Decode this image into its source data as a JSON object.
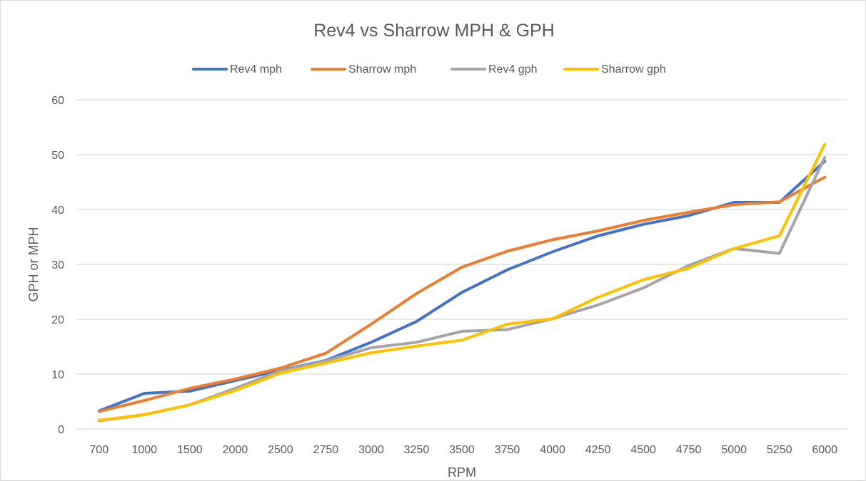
{
  "chart_data": {
    "type": "line",
    "title": "Rev4 vs Sharrow MPH & GPH",
    "xlabel": "RPM",
    "ylabel": "GPH or MPH",
    "ylim": [
      0,
      60
    ],
    "yticks": [
      0,
      10,
      20,
      30,
      40,
      50,
      60
    ],
    "grid": true,
    "legend": "top",
    "categories": [
      "700",
      "1000",
      "1500",
      "2000",
      "2500",
      "2750",
      "3000",
      "3250",
      "3500",
      "3750",
      "4000",
      "4250",
      "4500",
      "4750",
      "5000",
      "5250",
      "6000"
    ],
    "series": [
      {
        "name": "Rev4 mph",
        "color": "#4472c4",
        "values": [
          3.3,
          6.5,
          6.9,
          8.8,
          10.7,
          12.5,
          15.8,
          19.6,
          24.9,
          29.0,
          32.3,
          35.2,
          37.3,
          38.9,
          41.3,
          41.3,
          48.8
        ]
      },
      {
        "name": "Sharrow mph",
        "color": "#ed7d31",
        "values": [
          3.2,
          5.2,
          7.4,
          9.1,
          11.1,
          13.8,
          19.1,
          24.7,
          29.5,
          32.4,
          34.5,
          36.1,
          38.0,
          39.5,
          40.9,
          41.4,
          45.9
        ]
      },
      {
        "name": "Rev4 gph",
        "color": "#a5a5a5",
        "values": [
          1.5,
          2.6,
          4.4,
          7.4,
          10.6,
          12.4,
          14.8,
          15.8,
          17.8,
          18.1,
          20.1,
          22.6,
          25.7,
          29.8,
          32.9,
          32.0,
          49.5
        ]
      },
      {
        "name": "Sharrow gph",
        "color": "#ffc000",
        "values": [
          1.6,
          2.6,
          4.4,
          7.0,
          10.2,
          12.0,
          13.9,
          15.1,
          16.2,
          19.1,
          20.1,
          24.0,
          27.2,
          29.3,
          32.9,
          35.2,
          51.9
        ]
      }
    ]
  }
}
